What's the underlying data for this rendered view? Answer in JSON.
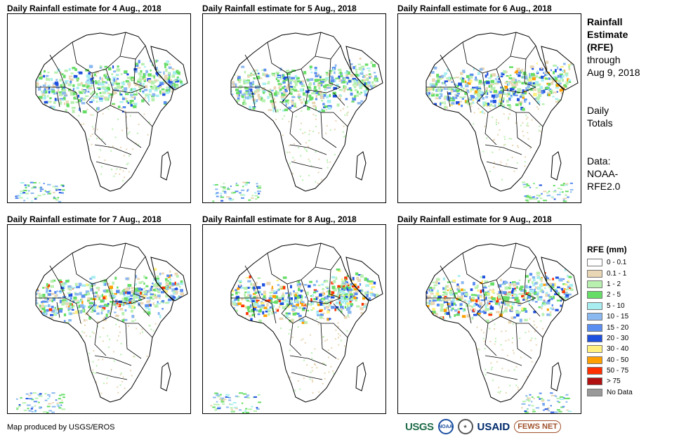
{
  "panels": [
    {
      "title": "Daily Rainfall estimate for 4 Aug., 2018",
      "id": "aug4"
    },
    {
      "title": "Daily Rainfall estimate for 5 Aug., 2018",
      "id": "aug5"
    },
    {
      "title": "Daily Rainfall estimate for 6 Aug., 2018",
      "id": "aug6"
    },
    {
      "title": "Daily Rainfall estimate for 7 Aug., 2018",
      "id": "aug7"
    },
    {
      "title": "Daily Rainfall estimate for 8 Aug., 2018",
      "id": "aug8"
    },
    {
      "title": "Daily Rainfall estimate for 9 Aug., 2018",
      "id": "aug9"
    }
  ],
  "side": {
    "title_lines": [
      "Rainfall",
      "Estimate",
      "(RFE)"
    ],
    "through_lines": [
      "through",
      "Aug 9, 2018"
    ],
    "totals_lines": [
      "Daily",
      "Totals"
    ],
    "data_lines": [
      "Data:",
      "NOAA-",
      "RFE2.0"
    ]
  },
  "legend": {
    "title": "RFE (mm)",
    "items": [
      {
        "label": "0 - 0.1",
        "color": "#ffffff"
      },
      {
        "label": "0.1 - 1",
        "color": "#e8d6b4"
      },
      {
        "label": "1 - 2",
        "color": "#b8f0b0"
      },
      {
        "label": "2 - 5",
        "color": "#66dd66"
      },
      {
        "label": "5 - 10",
        "color": "#a8eef0"
      },
      {
        "label": "10 - 15",
        "color": "#8ab8f0"
      },
      {
        "label": "15 - 20",
        "color": "#5a8ef0"
      },
      {
        "label": "20 - 30",
        "color": "#1e50e0"
      },
      {
        "label": "30 - 40",
        "color": "#fff080"
      },
      {
        "label": "40 - 50",
        "color": "#ffa000"
      },
      {
        "label": "50 - 75",
        "color": "#ff3000"
      },
      {
        "label": "> 75",
        "color": "#b01010"
      },
      {
        "label": "No Data",
        "color": "#999999"
      }
    ]
  },
  "credit": "Map produced by USGS/EROS",
  "logos": {
    "usgs": "USGS",
    "noaa": "NOAA",
    "usaid": "USAID",
    "fews": "FEWS NET"
  }
}
